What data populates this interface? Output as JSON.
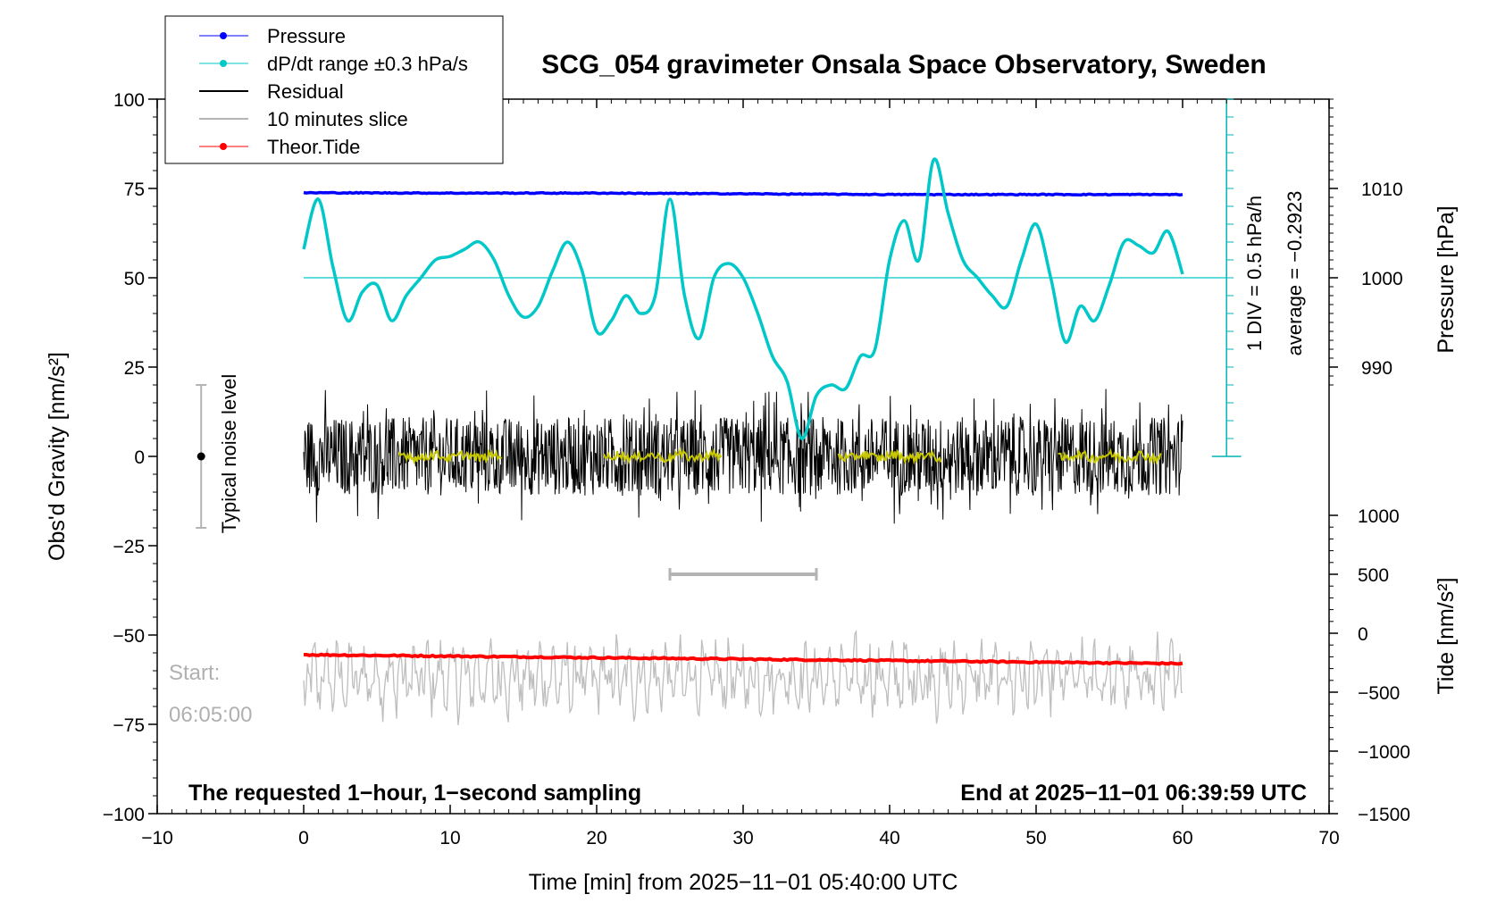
{
  "chart_data": {
    "type": "line",
    "title": "SCG_054 gravimeter Onsala Space Observatory, Sweden",
    "xlabel": "Time [min] from 2025−11−01 05:40:00 UTC",
    "ylabel_left": "Obs'd Gravity [nm/s²]",
    "ylabel_pressure": "Pressure [hPa]",
    "ylabel_tide": "Tide [nm/s²]",
    "xlim": [
      -10,
      70
    ],
    "ylim": [
      -100,
      100
    ],
    "x_ticks": [
      "−10",
      "0",
      "10",
      "20",
      "30",
      "40",
      "50",
      "60",
      "70"
    ],
    "y_ticks": [
      "100",
      "75",
      "50",
      "25",
      "0",
      "−25",
      "−50",
      "−75",
      "−100"
    ],
    "pressure_ticks": [
      "1010",
      "1000",
      "990"
    ],
    "tide_ticks": [
      "1000",
      "500",
      "0",
      "−500",
      "−1000",
      "−1500"
    ],
    "legend": [
      {
        "label": "Pressure",
        "color": "#0000ff"
      },
      {
        "label": "dP/dt range ±0.3 hPa/s",
        "color": "#00c8c8"
      },
      {
        "label": "Residual",
        "color": "#000000"
      },
      {
        "label": "10 minutes slice",
        "color": "#b4b4b4"
      },
      {
        "label": "Theor.Tide",
        "color": "#ff0000"
      }
    ],
    "pressure_series": {
      "name": "Pressure",
      "x": [
        0,
        10,
        20,
        30,
        40,
        50,
        60
      ],
      "values": [
        73.8,
        73.7,
        73.7,
        73.5,
        73.3,
        73.3,
        73.3
      ]
    },
    "dpdt_series": {
      "name": "dP/dt",
      "x": [
        0,
        1,
        2,
        3,
        4,
        5,
        6,
        7,
        8,
        9,
        10,
        11,
        12,
        13,
        14,
        15,
        16,
        17,
        18,
        19,
        20,
        21,
        22,
        23,
        24,
        25,
        26,
        27,
        28,
        29,
        30,
        31,
        32,
        33,
        34,
        35,
        36,
        37,
        38,
        39,
        40,
        41,
        42,
        43,
        44,
        45,
        46,
        47,
        48,
        49,
        50,
        51,
        52,
        53,
        54,
        55,
        56,
        57,
        58,
        59,
        60
      ],
      "values": [
        58,
        72,
        53,
        38,
        46,
        48,
        38,
        45,
        50,
        55,
        56,
        58,
        60,
        55,
        45,
        39,
        42,
        52,
        60,
        52,
        35,
        38,
        45,
        40,
        45,
        72,
        45,
        33,
        50,
        54,
        50,
        40,
        28,
        21,
        5,
        17,
        20,
        19,
        28,
        30,
        55,
        66,
        55,
        83,
        68,
        55,
        50,
        45,
        42,
        55,
        65,
        50,
        32,
        42,
        38,
        48,
        60,
        59,
        57,
        63,
        51
      ]
    },
    "dpdt_reference": 50,
    "residual_noise_range": [
      -25,
      20
    ],
    "noise_level_bar": [
      -20,
      20
    ],
    "slice_bar_x": [
      25,
      35
    ],
    "slice_bar_y": -33,
    "tide_series": {
      "name": "Theor.Tide",
      "x": [
        0,
        60
      ],
      "values": [
        -55.5,
        -58
      ]
    },
    "dpdt_scale_label": "1 DIV = 0.5 hPa/h",
    "average_label": "average = −0.2923"
  },
  "noise_label": "Typical noise level",
  "start_label": "Start:",
  "start_time": "06:05:00",
  "footer_left": "The requested 1−hour, 1−second sampling",
  "footer_right": "End at 2025−11−01 06:39:59 UTC"
}
